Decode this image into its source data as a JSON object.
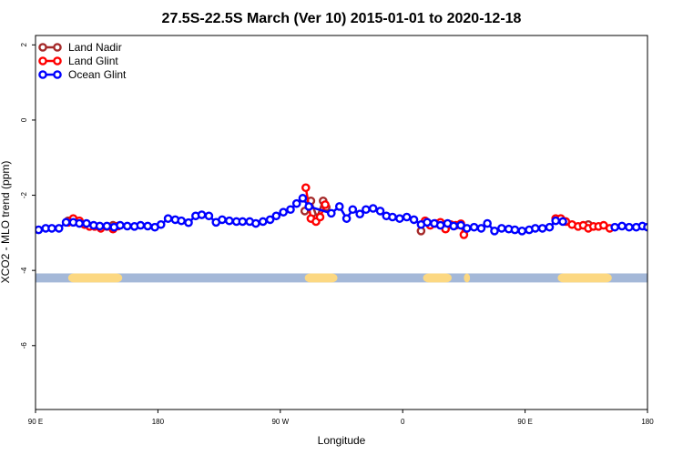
{
  "chart_data": {
    "type": "line",
    "title": "27.5S-22.5S March (Ver 10)   2015-01-01 to 2020-12-18",
    "xlabel": "Longitude",
    "ylabel": "XCO2 - MLO trend (ppm)",
    "xlim": [
      0,
      600
    ],
    "ylim": [
      -7.7,
      2.25
    ],
    "x_ticks": [
      {
        "value": 0,
        "label": "90 E"
      },
      {
        "value": 120,
        "label": "180"
      },
      {
        "value": 240,
        "label": "90 W"
      },
      {
        "value": 360,
        "label": "0"
      },
      {
        "value": 480,
        "label": "90 E"
      },
      {
        "value": 600,
        "label": "180"
      }
    ],
    "y_ticks": [
      -6,
      -4,
      -2,
      0,
      2
    ],
    "grid": false,
    "legend_position": "top-left",
    "series": [
      {
        "name": "Land Nadir",
        "color": "#a52a2a",
        "points": [
          [
            32,
            -2.68
          ],
          [
            36,
            -2.66
          ],
          [
            76,
            -2.8
          ],
          [
            264,
            -2.42
          ],
          [
            270,
            -2.15
          ],
          [
            276,
            -2.6
          ],
          [
            282,
            -2.15
          ],
          [
            285,
            -2.32
          ],
          [
            378,
            -2.95
          ],
          [
            542,
            -2.78
          ]
        ]
      },
      {
        "name": "Land Glint",
        "color": "#ff0000",
        "points": [
          [
            32,
            -2.72
          ],
          [
            37,
            -2.62
          ],
          [
            43,
            -2.68
          ],
          [
            48,
            -2.78
          ],
          [
            53,
            -2.83
          ],
          [
            58,
            -2.83
          ],
          [
            64,
            -2.88
          ],
          [
            70,
            -2.83
          ],
          [
            76,
            -2.9
          ],
          [
            81,
            -2.82
          ],
          [
            265,
            -1.8
          ],
          [
            270,
            -2.62
          ],
          [
            275,
            -2.7
          ],
          [
            279,
            -2.58
          ],
          [
            284,
            -2.25
          ],
          [
            382,
            -2.68
          ],
          [
            387,
            -2.8
          ],
          [
            392,
            -2.75
          ],
          [
            397,
            -2.72
          ],
          [
            402,
            -2.9
          ],
          [
            407,
            -2.78
          ],
          [
            412,
            -2.8
          ],
          [
            417,
            -2.76
          ],
          [
            420,
            -3.05
          ],
          [
            510,
            -2.62
          ],
          [
            515,
            -2.62
          ],
          [
            520,
            -2.7
          ],
          [
            526,
            -2.78
          ],
          [
            532,
            -2.83
          ],
          [
            537,
            -2.8
          ],
          [
            542,
            -2.88
          ],
          [
            547,
            -2.83
          ],
          [
            552,
            -2.83
          ],
          [
            557,
            -2.8
          ],
          [
            563,
            -2.88
          ]
        ]
      },
      {
        "name": "Ocean Glint",
        "color": "#0000ff",
        "points": [
          [
            3,
            -2.92
          ],
          [
            10,
            -2.88
          ],
          [
            16,
            -2.88
          ],
          [
            23,
            -2.88
          ],
          [
            30,
            -2.72
          ],
          [
            37,
            -2.72
          ],
          [
            43,
            -2.75
          ],
          [
            50,
            -2.75
          ],
          [
            57,
            -2.8
          ],
          [
            63,
            -2.82
          ],
          [
            70,
            -2.82
          ],
          [
            77,
            -2.85
          ],
          [
            83,
            -2.8
          ],
          [
            90,
            -2.82
          ],
          [
            97,
            -2.83
          ],
          [
            103,
            -2.8
          ],
          [
            110,
            -2.82
          ],
          [
            117,
            -2.85
          ],
          [
            123,
            -2.78
          ],
          [
            130,
            -2.62
          ],
          [
            137,
            -2.65
          ],
          [
            143,
            -2.68
          ],
          [
            150,
            -2.73
          ],
          [
            157,
            -2.55
          ],
          [
            163,
            -2.52
          ],
          [
            170,
            -2.55
          ],
          [
            177,
            -2.72
          ],
          [
            183,
            -2.65
          ],
          [
            190,
            -2.68
          ],
          [
            197,
            -2.7
          ],
          [
            203,
            -2.7
          ],
          [
            210,
            -2.7
          ],
          [
            216,
            -2.75
          ],
          [
            223,
            -2.7
          ],
          [
            230,
            -2.65
          ],
          [
            236,
            -2.55
          ],
          [
            243,
            -2.45
          ],
          [
            250,
            -2.38
          ],
          [
            256,
            -2.22
          ],
          [
            262,
            -2.08
          ],
          [
            268,
            -2.3
          ],
          [
            290,
            -2.48
          ],
          [
            298,
            -2.3
          ],
          [
            305,
            -2.62
          ],
          [
            311,
            -2.38
          ],
          [
            318,
            -2.5
          ],
          [
            324,
            -2.38
          ],
          [
            331,
            -2.35
          ],
          [
            338,
            -2.42
          ],
          [
            344,
            -2.55
          ],
          [
            350,
            -2.58
          ],
          [
            357,
            -2.62
          ],
          [
            364,
            -2.58
          ],
          [
            371,
            -2.65
          ],
          [
            378,
            -2.78
          ],
          [
            384,
            -2.72
          ],
          [
            391,
            -2.75
          ],
          [
            397,
            -2.8
          ],
          [
            404,
            -2.75
          ],
          [
            410,
            -2.82
          ],
          [
            417,
            -2.8
          ],
          [
            423,
            -2.88
          ],
          [
            430,
            -2.85
          ],
          [
            437,
            -2.88
          ],
          [
            443,
            -2.75
          ],
          [
            450,
            -2.95
          ],
          [
            457,
            -2.88
          ],
          [
            464,
            -2.9
          ],
          [
            470,
            -2.92
          ],
          [
            477,
            -2.95
          ],
          [
            484,
            -2.92
          ],
          [
            490,
            -2.88
          ],
          [
            497,
            -2.88
          ],
          [
            504,
            -2.85
          ],
          [
            510,
            -2.68
          ],
          [
            517,
            -2.7
          ],
          [
            568,
            -2.85
          ],
          [
            575,
            -2.82
          ],
          [
            582,
            -2.85
          ],
          [
            589,
            -2.85
          ],
          [
            595,
            -2.82
          ],
          [
            600,
            -2.85
          ]
        ]
      }
    ],
    "basemap": {
      "ocean_color": "#a4b8d8",
      "land_color": "#fcd882",
      "band_y": [
        -4.32,
        -4.08
      ],
      "land_ranges": [
        [
          32,
          85
        ],
        [
          264,
          296
        ],
        [
          380,
          408
        ],
        [
          420,
          426
        ],
        [
          512,
          565
        ]
      ]
    }
  }
}
